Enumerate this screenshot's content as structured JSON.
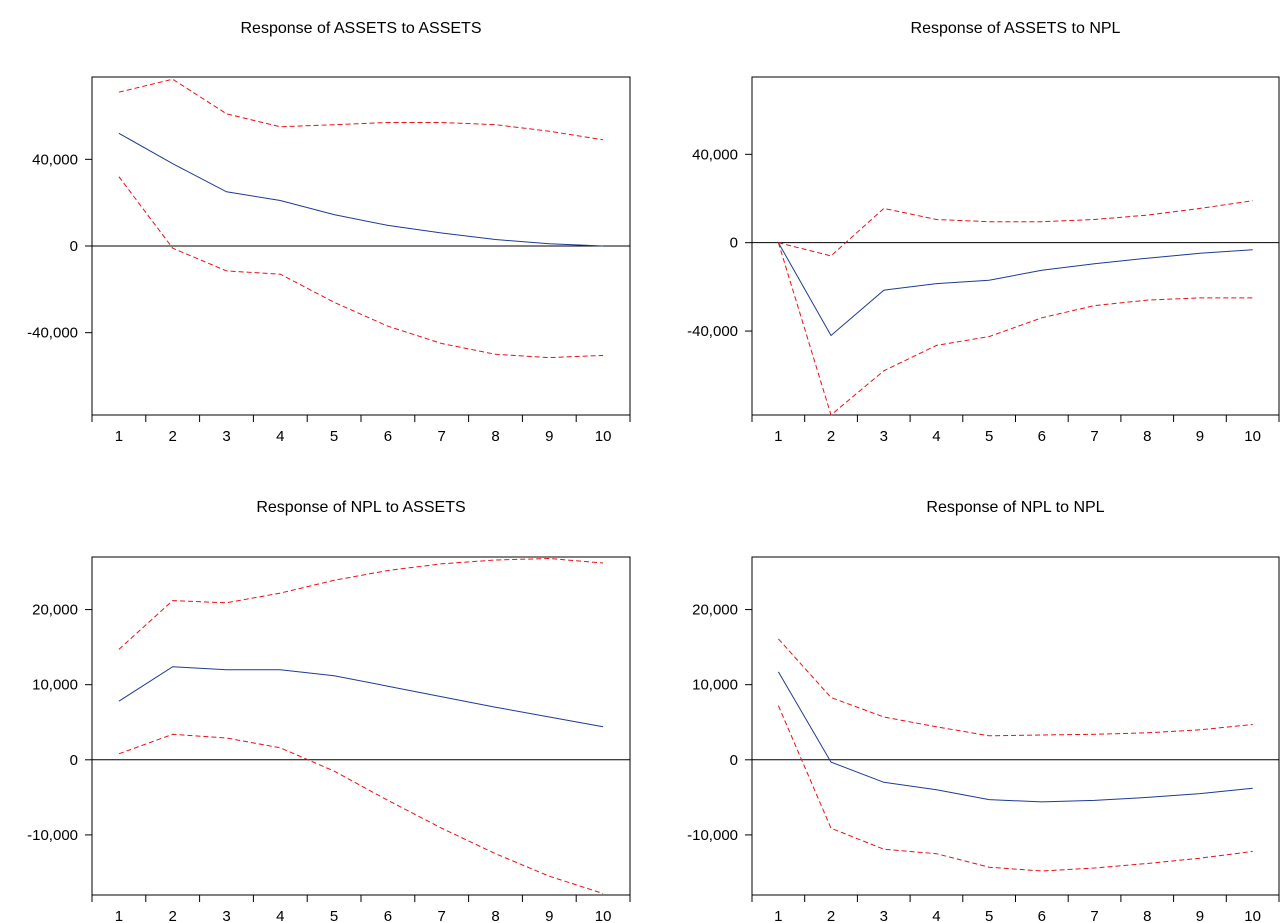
{
  "chart_data": [
    {
      "type": "line",
      "title": "Response of ASSETS to ASSETS",
      "categories": [
        "1",
        "2",
        "3",
        "4",
        "5",
        "6",
        "7",
        "8",
        "9",
        "10"
      ],
      "ylim": [
        -78000,
        78000
      ],
      "yticks": [
        {
          "value": 40000,
          "label": "40,000"
        },
        {
          "value": 0,
          "label": "0"
        },
        {
          "value": -40000,
          "label": "-40,000"
        }
      ],
      "zero_line": true,
      "colors": {
        "response": "#1f3a93",
        "bands": "#e8101a"
      },
      "series": [
        {
          "role": "response",
          "values": [
            52000,
            38000,
            25000,
            21000,
            14500,
            9500,
            6000,
            3000,
            1000,
            0
          ]
        },
        {
          "role": "upper",
          "values": [
            71000,
            77000,
            61000,
            55000,
            56000,
            57000,
            57000,
            56000,
            53000,
            49000
          ]
        },
        {
          "role": "lower",
          "values": [
            32000,
            -1000,
            -11500,
            -13000,
            -26000,
            -37000,
            -45000,
            -50000,
            -51500,
            -50500
          ]
        }
      ]
    },
    {
      "type": "line",
      "title": "Response of ASSETS to NPL",
      "categories": [
        "1",
        "2",
        "3",
        "4",
        "5",
        "6",
        "7",
        "8",
        "9",
        "10"
      ],
      "ylim": [
        -78000,
        75000
      ],
      "yticks": [
        {
          "value": 40000,
          "label": "40,000"
        },
        {
          "value": 0,
          "label": "0"
        },
        {
          "value": -40000,
          "label": "-40,000"
        }
      ],
      "zero_line": true,
      "colors": {
        "response": "#1f3a93",
        "bands": "#e8101a"
      },
      "series": [
        {
          "role": "response",
          "values": [
            0,
            -42000,
            -21500,
            -18500,
            -17000,
            -12500,
            -9500,
            -7000,
            -4800,
            -3200
          ]
        },
        {
          "role": "upper",
          "values": [
            0,
            -6000,
            15500,
            10500,
            9500,
            9500,
            10500,
            12500,
            15500,
            19000
          ]
        },
        {
          "role": "lower",
          "values": [
            0,
            -78000,
            -58000,
            -46500,
            -42500,
            -34000,
            -28500,
            -26000,
            -25000,
            -25000
          ]
        }
      ]
    },
    {
      "type": "line",
      "title": "Response of NPL to ASSETS",
      "categories": [
        "1",
        "2",
        "3",
        "4",
        "5",
        "6",
        "7",
        "8",
        "9",
        "10"
      ],
      "ylim": [
        -18000,
        27000
      ],
      "yticks": [
        {
          "value": 20000,
          "label": "20,000"
        },
        {
          "value": 10000,
          "label": "10,000"
        },
        {
          "value": 0,
          "label": "0"
        },
        {
          "value": -10000,
          "label": "-10,000"
        }
      ],
      "zero_line": true,
      "colors": {
        "response": "#1f3a93",
        "bands": "#e8101a"
      },
      "series": [
        {
          "role": "response",
          "values": [
            7800,
            12400,
            12000,
            12000,
            11200,
            9800,
            8400,
            7000,
            5700,
            4400
          ]
        },
        {
          "role": "upper",
          "values": [
            14700,
            21200,
            20900,
            22200,
            23900,
            25200,
            26100,
            26600,
            26800,
            26200
          ]
        },
        {
          "role": "lower",
          "values": [
            800,
            3400,
            2900,
            1600,
            -1500,
            -5400,
            -9100,
            -12500,
            -15500,
            -17800
          ]
        }
      ]
    },
    {
      "type": "line",
      "title": "Response of NPL to NPL",
      "categories": [
        "1",
        "2",
        "3",
        "4",
        "5",
        "6",
        "7",
        "8",
        "9",
        "10"
      ],
      "ylim": [
        -18000,
        27000
      ],
      "yticks": [
        {
          "value": 20000,
          "label": "20,000"
        },
        {
          "value": 10000,
          "label": "10,000"
        },
        {
          "value": 0,
          "label": "0"
        },
        {
          "value": -10000,
          "label": "-10,000"
        }
      ],
      "zero_line": true,
      "colors": {
        "response": "#1f3a93",
        "bands": "#e8101a"
      },
      "series": [
        {
          "role": "response",
          "values": [
            11700,
            -300,
            -3000,
            -4000,
            -5300,
            -5600,
            -5400,
            -5000,
            -4500,
            -3800
          ]
        },
        {
          "role": "upper",
          "values": [
            16100,
            8300,
            5700,
            4400,
            3200,
            3300,
            3400,
            3600,
            4000,
            4700
          ]
        },
        {
          "role": "lower",
          "values": [
            7200,
            -9100,
            -11900,
            -12500,
            -14300,
            -14800,
            -14400,
            -13800,
            -13100,
            -12200
          ]
        }
      ]
    }
  ]
}
